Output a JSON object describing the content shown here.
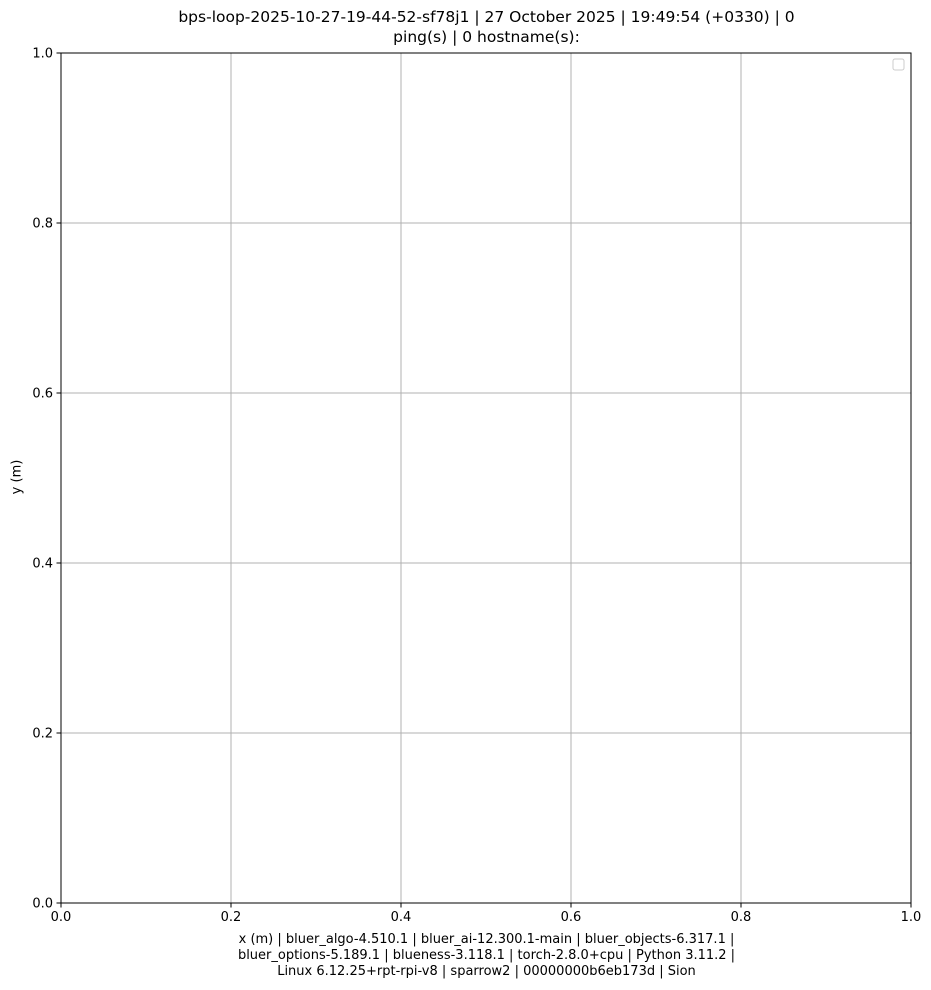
{
  "chart_data": {
    "type": "line",
    "title_lines": [
      "bps-loop-2025-10-27-19-44-52-sf78j1 | 27 October 2025 | 19:49:54 (+0330) | 0",
      "ping(s) | 0 hostname(s):"
    ],
    "xlabel_lines": [
      "x (m) | bluer_algo-4.510.1 | bluer_ai-12.300.1-main | bluer_objects-6.317.1 |",
      "bluer_options-5.189.1 | blueness-3.118.1 | torch-2.8.0+cpu | Python 3.11.2 |",
      "Linux 6.12.25+rpt-rpi-v8 | sparrow2 | 00000000b6eb173d | Sion"
    ],
    "ylabel": "y (m)",
    "xlim": [
      0,
      1
    ],
    "ylim": [
      0,
      1
    ],
    "xticks": [
      0,
      0.2,
      0.4,
      0.6,
      0.8,
      1
    ],
    "yticks": [
      0,
      0.2,
      0.4,
      0.6,
      0.8,
      1
    ],
    "xtick_labels": [
      "0.0",
      "0.2",
      "0.4",
      "0.6",
      "0.8",
      "1.0"
    ],
    "ytick_labels": [
      "0.0",
      "0.2",
      "0.4",
      "0.6",
      "0.8",
      "1.0"
    ],
    "grid": true,
    "legend": {
      "placement": "top-right",
      "entries": []
    },
    "series": []
  },
  "colors": {
    "grid": "#b0b0b0",
    "axes": "#000000",
    "background": "#ffffff",
    "legend_border": "#cccccc"
  }
}
